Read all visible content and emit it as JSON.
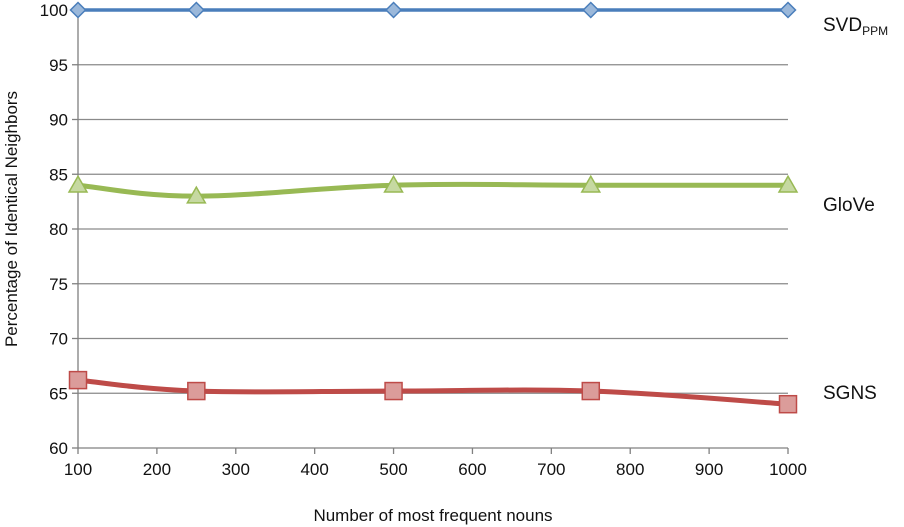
{
  "chart_data": {
    "type": "line",
    "xlabel": "Number of most frequent nouns",
    "ylabel": "Percentage of Identical Neighbors",
    "xlim": [
      100,
      1000
    ],
    "ylim": [
      60,
      100
    ],
    "x_ticks": [
      100,
      200,
      300,
      400,
      500,
      600,
      700,
      800,
      900,
      1000
    ],
    "y_ticks": [
      60,
      65,
      70,
      75,
      80,
      85,
      90,
      95,
      100
    ],
    "grid": "horizontal",
    "legend": "right-end-labels",
    "series": [
      {
        "name": "SVD",
        "name_subscript": "PPM",
        "marker": "diamond",
        "color": "#4a7ebb",
        "x": [
          100,
          250,
          500,
          750,
          1000
        ],
        "y": [
          100,
          100,
          100,
          100,
          100
        ]
      },
      {
        "name": "GloVe",
        "marker": "triangle",
        "color": "#98b954",
        "x": [
          100,
          250,
          500,
          750,
          1000
        ],
        "y": [
          84,
          83,
          84,
          84,
          84
        ]
      },
      {
        "name": "SGNS",
        "marker": "square",
        "color": "#be4b48",
        "x": [
          100,
          250,
          500,
          750,
          1000
        ],
        "y": [
          66.2,
          65.2,
          65.2,
          65.2,
          64
        ]
      }
    ]
  }
}
